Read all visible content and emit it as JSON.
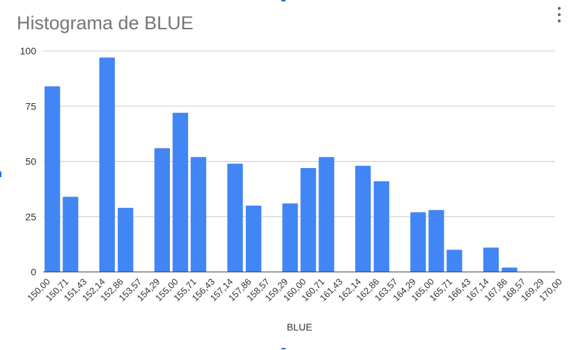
{
  "menu": {
    "icon": "more-vert-icon"
  },
  "chart_data": {
    "type": "bar",
    "title": "Histograma de BLUE",
    "xlabel": "BLUE",
    "ylabel": "",
    "ylim": [
      0,
      100
    ],
    "yticks": [
      "0",
      "25",
      "50",
      "75",
      "100"
    ],
    "x_ticks": [
      "150,00",
      "150,71",
      "151,43",
      "152,14",
      "152,86",
      "153,57",
      "154,29",
      "155,00",
      "155,71",
      "156,43",
      "157,14",
      "157,86",
      "158,57",
      "159,29",
      "160,00",
      "160,71",
      "161,43",
      "162,14",
      "162,86",
      "163,57",
      "164,29",
      "165,00",
      "165,71",
      "166,43",
      "167,14",
      "167,86",
      "168,57",
      "169,29",
      "170,00"
    ],
    "bin_width": 0.7143,
    "bins": [
      {
        "start": 150.0,
        "value": 84
      },
      {
        "start": 150.71,
        "value": 34
      },
      {
        "start": 151.43,
        "value": 0
      },
      {
        "start": 152.14,
        "value": 97
      },
      {
        "start": 152.86,
        "value": 29
      },
      {
        "start": 153.57,
        "value": 0
      },
      {
        "start": 154.29,
        "value": 56
      },
      {
        "start": 155.0,
        "value": 72
      },
      {
        "start": 155.71,
        "value": 52
      },
      {
        "start": 156.43,
        "value": 0
      },
      {
        "start": 157.14,
        "value": 49
      },
      {
        "start": 157.86,
        "value": 30
      },
      {
        "start": 158.57,
        "value": 0
      },
      {
        "start": 159.29,
        "value": 31
      },
      {
        "start": 160.0,
        "value": 47
      },
      {
        "start": 160.71,
        "value": 52
      },
      {
        "start": 161.43,
        "value": 0
      },
      {
        "start": 162.14,
        "value": 48
      },
      {
        "start": 162.86,
        "value": 41
      },
      {
        "start": 163.57,
        "value": 0
      },
      {
        "start": 164.29,
        "value": 27
      },
      {
        "start": 165.0,
        "value": 28
      },
      {
        "start": 165.71,
        "value": 10
      },
      {
        "start": 166.43,
        "value": 0
      },
      {
        "start": 167.14,
        "value": 11
      },
      {
        "start": 167.86,
        "value": 2
      }
    ],
    "bar_color": "#4285f4",
    "grid": true,
    "legend": "none"
  }
}
